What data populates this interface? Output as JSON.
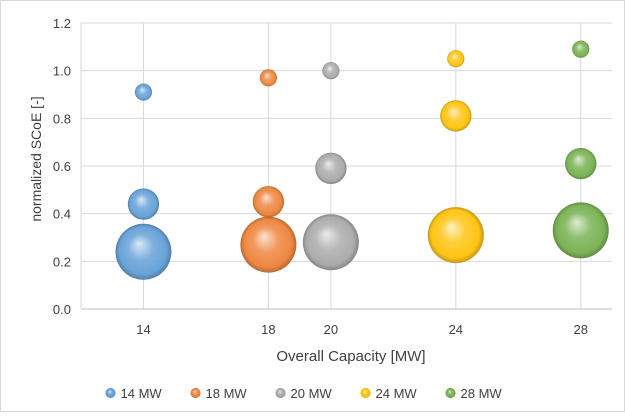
{
  "chart_data": {
    "type": "scatter",
    "variant": "bubble",
    "title": "",
    "xlabel": "Overall Capacity [MW]",
    "ylabel": "normalized SCoE [-]",
    "xlim": [
      12,
      29
    ],
    "ylim": [
      0,
      1.2
    ],
    "x_ticks": [
      14,
      18,
      20,
      24,
      28
    ],
    "y_ticks": [
      0.0,
      0.2,
      0.4,
      0.6,
      0.8,
      1.0,
      1.2
    ],
    "grid": true,
    "legend_position": "bottom",
    "series": [
      {
        "name": "14 MW",
        "color": "#5b9bd5",
        "points": [
          {
            "x": 14,
            "y": 0.91,
            "size": 1
          },
          {
            "x": 14,
            "y": 0.44,
            "size": 4
          },
          {
            "x": 14,
            "y": 0.24,
            "size": 14
          }
        ]
      },
      {
        "name": "18 MW",
        "color": "#ed7d31",
        "points": [
          {
            "x": 18,
            "y": 0.97,
            "size": 1
          },
          {
            "x": 18,
            "y": 0.45,
            "size": 4
          },
          {
            "x": 18,
            "y": 0.27,
            "size": 14
          }
        ]
      },
      {
        "name": "20 MW",
        "color": "#a5a5a5",
        "points": [
          {
            "x": 20,
            "y": 1.0,
            "size": 1
          },
          {
            "x": 20,
            "y": 0.59,
            "size": 4
          },
          {
            "x": 20,
            "y": 0.28,
            "size": 14
          }
        ]
      },
      {
        "name": "24 MW",
        "color": "#ffc000",
        "points": [
          {
            "x": 24,
            "y": 1.05,
            "size": 1
          },
          {
            "x": 24,
            "y": 0.81,
            "size": 4
          },
          {
            "x": 24,
            "y": 0.31,
            "size": 14
          }
        ]
      },
      {
        "name": "28 MW",
        "color": "#70ad47",
        "points": [
          {
            "x": 28,
            "y": 1.09,
            "size": 1
          },
          {
            "x": 28,
            "y": 0.61,
            "size": 4
          },
          {
            "x": 28,
            "y": 0.33,
            "size": 14
          }
        ]
      }
    ]
  }
}
